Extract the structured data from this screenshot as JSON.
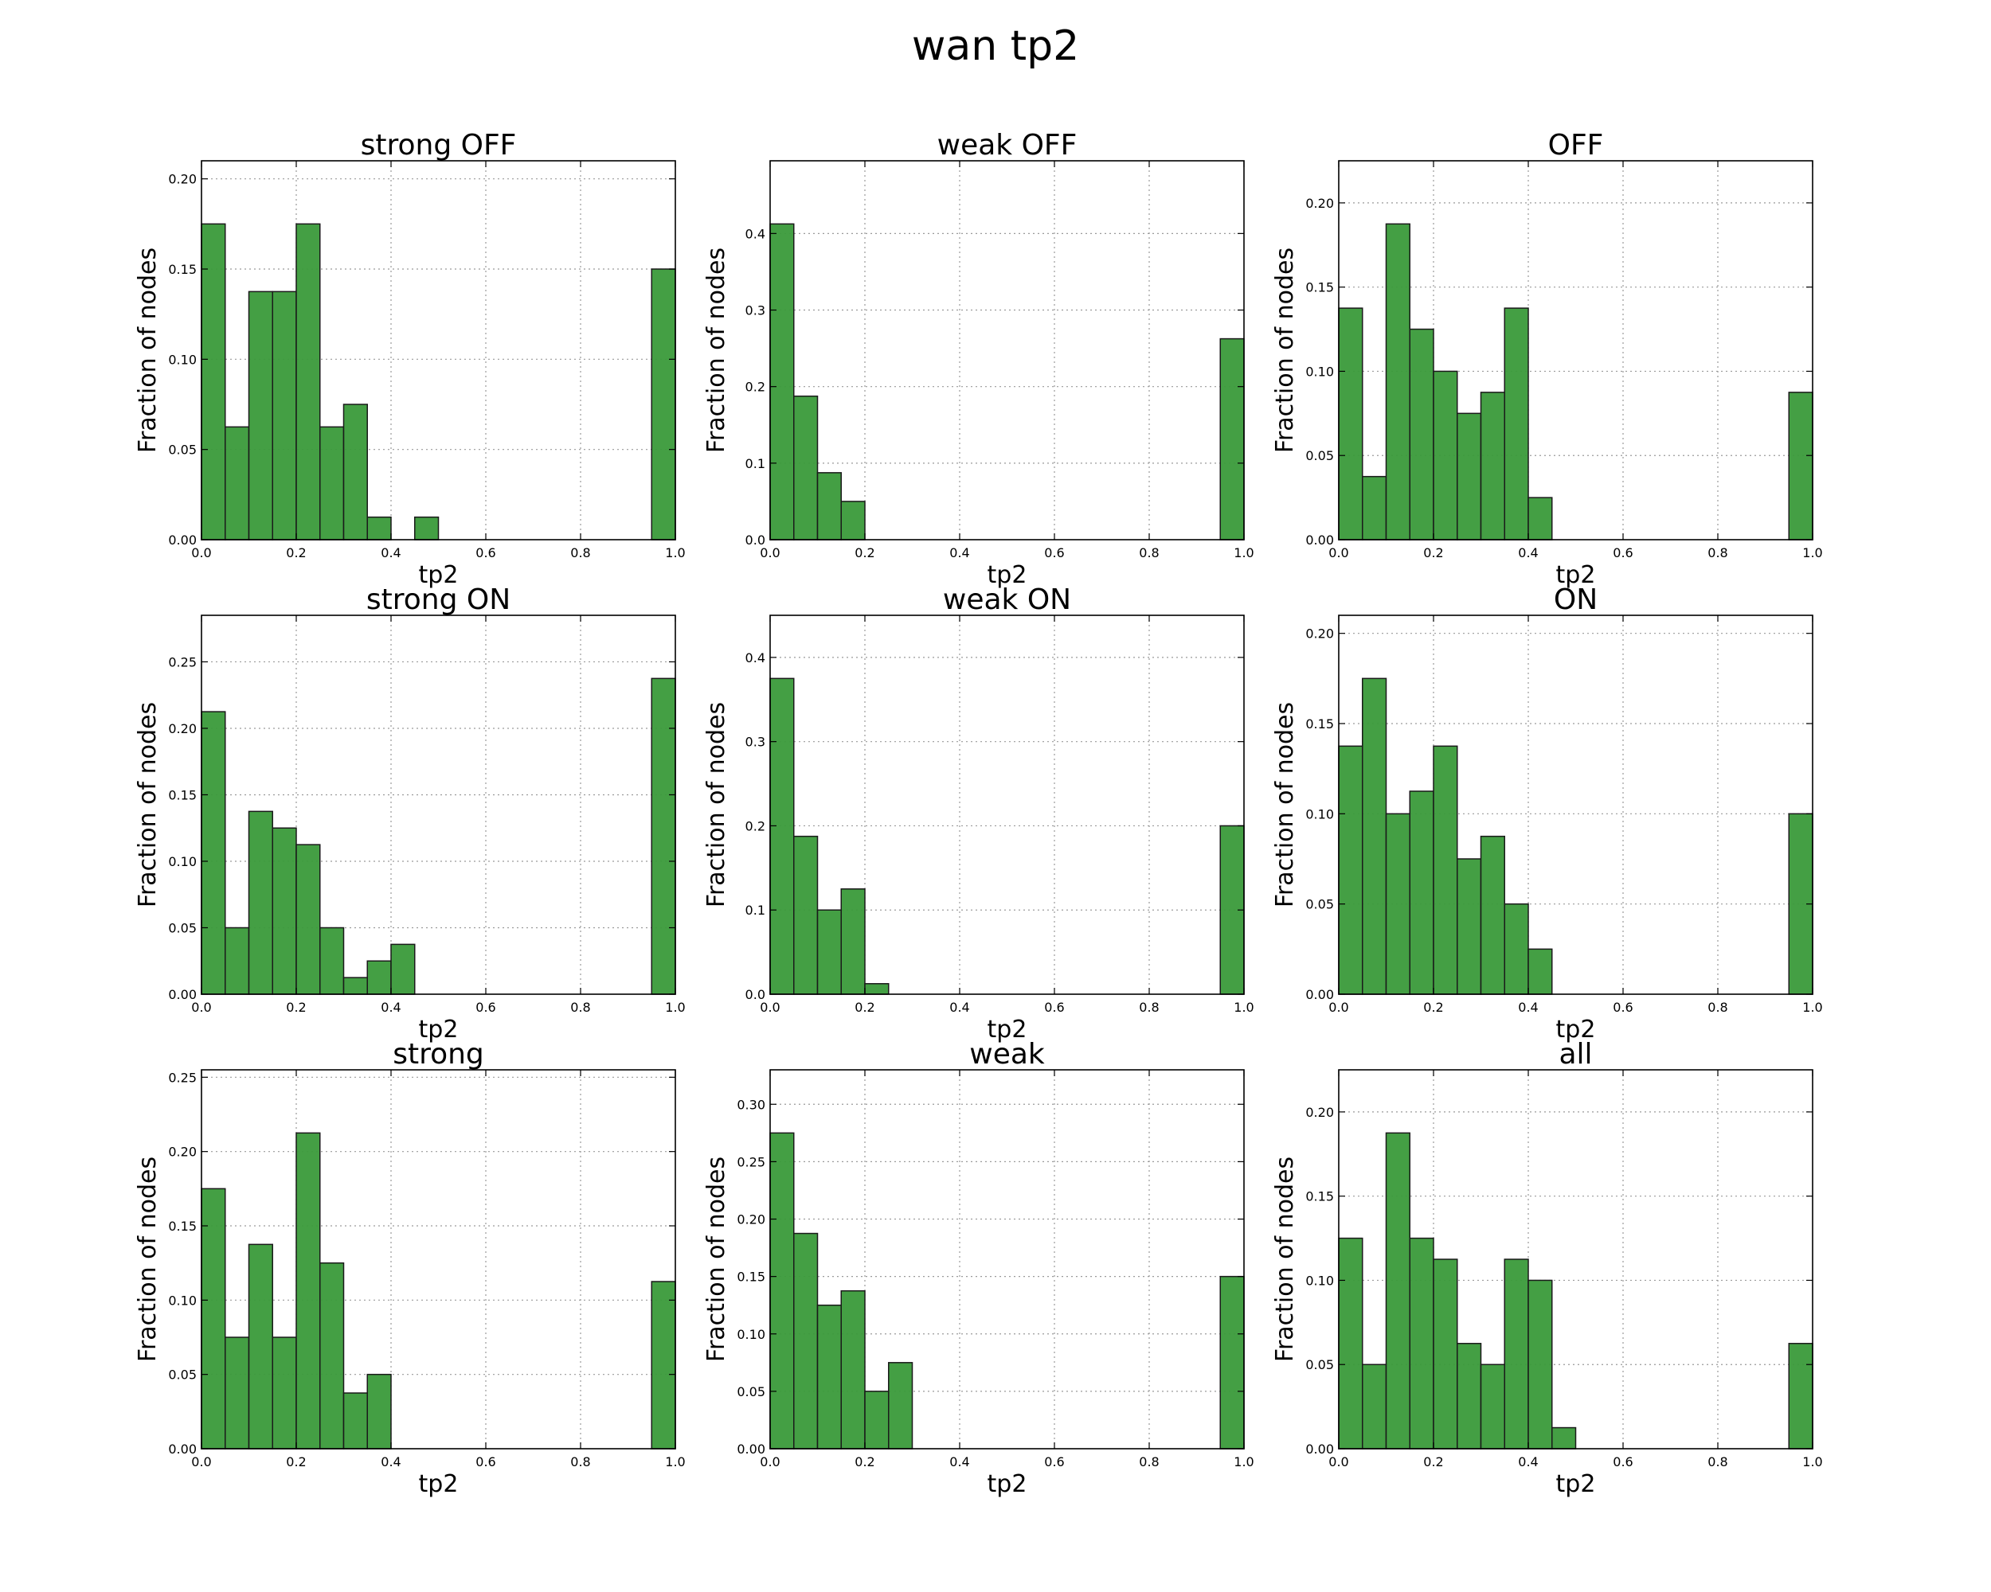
{
  "figure": {
    "title": "wan tp2"
  },
  "chart_data": [
    {
      "type": "bar",
      "title": "strong OFF",
      "xlabel": "tp2",
      "ylabel": "Fraction of nodes",
      "bin_edges": [
        0.0,
        0.05,
        0.1,
        0.15,
        0.2,
        0.25,
        0.3,
        0.35,
        0.4,
        0.45,
        0.5,
        0.55,
        0.6,
        0.65,
        0.7,
        0.75,
        0.8,
        0.85,
        0.9,
        0.95,
        1.0
      ],
      "values": [
        0.175,
        0.0625,
        0.1375,
        0.1375,
        0.175,
        0.0625,
        0.075,
        0.0125,
        0,
        0.0125,
        0,
        0,
        0,
        0,
        0,
        0,
        0,
        0,
        0,
        0.15
      ],
      "xlim": [
        0,
        1
      ],
      "ylim": [
        0,
        0.21
      ],
      "xticks": [
        "0.0",
        "0.2",
        "0.4",
        "0.6",
        "0.8",
        "1.0"
      ],
      "yticks": [
        "0.00",
        "0.05",
        "0.10",
        "0.15",
        "0.20"
      ],
      "grid": true,
      "color": "#3a9a3a"
    },
    {
      "type": "bar",
      "title": "weak OFF",
      "xlabel": "tp2",
      "ylabel": "Fraction of nodes",
      "bin_edges": [
        0.0,
        0.05,
        0.1,
        0.15,
        0.2,
        0.25,
        0.3,
        0.35,
        0.4,
        0.45,
        0.5,
        0.55,
        0.6,
        0.65,
        0.7,
        0.75,
        0.8,
        0.85,
        0.9,
        0.95,
        1.0
      ],
      "values": [
        0.4125,
        0.1875,
        0.0875,
        0.05,
        0,
        0,
        0,
        0,
        0,
        0,
        0,
        0,
        0,
        0,
        0,
        0,
        0,
        0,
        0,
        0.2625
      ],
      "xlim": [
        0,
        1
      ],
      "ylim": [
        0,
        0.495
      ],
      "xticks": [
        "0.0",
        "0.2",
        "0.4",
        "0.6",
        "0.8",
        "1.0"
      ],
      "yticks": [
        "0.0",
        "0.1",
        "0.2",
        "0.3",
        "0.4"
      ],
      "grid": true,
      "color": "#3a9a3a"
    },
    {
      "type": "bar",
      "title": "OFF",
      "xlabel": "tp2",
      "ylabel": "Fraction of nodes",
      "bin_edges": [
        0.0,
        0.05,
        0.1,
        0.15,
        0.2,
        0.25,
        0.3,
        0.35,
        0.4,
        0.45,
        0.5,
        0.55,
        0.6,
        0.65,
        0.7,
        0.75,
        0.8,
        0.85,
        0.9,
        0.95,
        1.0
      ],
      "values": [
        0.1375,
        0.0375,
        0.1875,
        0.125,
        0.1,
        0.075,
        0.0875,
        0.1375,
        0.025,
        0,
        0,
        0,
        0,
        0,
        0,
        0,
        0,
        0,
        0,
        0.0875
      ],
      "xlim": [
        0,
        1
      ],
      "ylim": [
        0,
        0.225
      ],
      "xticks": [
        "0.0",
        "0.2",
        "0.4",
        "0.6",
        "0.8",
        "1.0"
      ],
      "yticks": [
        "0.00",
        "0.05",
        "0.10",
        "0.15",
        "0.20"
      ],
      "grid": true,
      "color": "#3a9a3a"
    },
    {
      "type": "bar",
      "title": "strong ON",
      "xlabel": "tp2",
      "ylabel": "Fraction of nodes",
      "bin_edges": [
        0.0,
        0.05,
        0.1,
        0.15,
        0.2,
        0.25,
        0.3,
        0.35,
        0.4,
        0.45,
        0.5,
        0.55,
        0.6,
        0.65,
        0.7,
        0.75,
        0.8,
        0.85,
        0.9,
        0.95,
        1.0
      ],
      "values": [
        0.2125,
        0.05,
        0.1375,
        0.125,
        0.1125,
        0.05,
        0.0125,
        0.025,
        0.0375,
        0,
        0,
        0,
        0,
        0,
        0,
        0,
        0,
        0,
        0,
        0.2375
      ],
      "xlim": [
        0,
        1
      ],
      "ylim": [
        0,
        0.285
      ],
      "xticks": [
        "0.0",
        "0.2",
        "0.4",
        "0.6",
        "0.8",
        "1.0"
      ],
      "yticks": [
        "0.00",
        "0.05",
        "0.10",
        "0.15",
        "0.20",
        "0.25"
      ],
      "grid": true,
      "color": "#3a9a3a"
    },
    {
      "type": "bar",
      "title": "weak ON",
      "xlabel": "tp2",
      "ylabel": "Fraction of nodes",
      "bin_edges": [
        0.0,
        0.05,
        0.1,
        0.15,
        0.2,
        0.25,
        0.3,
        0.35,
        0.4,
        0.45,
        0.5,
        0.55,
        0.6,
        0.65,
        0.7,
        0.75,
        0.8,
        0.85,
        0.9,
        0.95,
        1.0
      ],
      "values": [
        0.375,
        0.1875,
        0.1,
        0.125,
        0.0125,
        0,
        0,
        0,
        0,
        0,
        0,
        0,
        0,
        0,
        0,
        0,
        0,
        0,
        0,
        0.2
      ],
      "xlim": [
        0,
        1
      ],
      "ylim": [
        0,
        0.45
      ],
      "xticks": [
        "0.0",
        "0.2",
        "0.4",
        "0.6",
        "0.8",
        "1.0"
      ],
      "yticks": [
        "0.0",
        "0.1",
        "0.2",
        "0.3",
        "0.4"
      ],
      "grid": true,
      "color": "#3a9a3a"
    },
    {
      "type": "bar",
      "title": "ON",
      "xlabel": "tp2",
      "ylabel": "Fraction of nodes",
      "bin_edges": [
        0.0,
        0.05,
        0.1,
        0.15,
        0.2,
        0.25,
        0.3,
        0.35,
        0.4,
        0.45,
        0.5,
        0.55,
        0.6,
        0.65,
        0.7,
        0.75,
        0.8,
        0.85,
        0.9,
        0.95,
        1.0
      ],
      "values": [
        0.1375,
        0.175,
        0.1,
        0.1125,
        0.1375,
        0.075,
        0.0875,
        0.05,
        0.025,
        0,
        0,
        0,
        0,
        0,
        0,
        0,
        0,
        0,
        0,
        0.1
      ],
      "xlim": [
        0,
        1
      ],
      "ylim": [
        0,
        0.21
      ],
      "xticks": [
        "0.0",
        "0.2",
        "0.4",
        "0.6",
        "0.8",
        "1.0"
      ],
      "yticks": [
        "0.00",
        "0.05",
        "0.10",
        "0.15",
        "0.20"
      ],
      "grid": true,
      "color": "#3a9a3a"
    },
    {
      "type": "bar",
      "title": "strong",
      "xlabel": "tp2",
      "ylabel": "Fraction of nodes",
      "bin_edges": [
        0.0,
        0.05,
        0.1,
        0.15,
        0.2,
        0.25,
        0.3,
        0.35,
        0.4,
        0.45,
        0.5,
        0.55,
        0.6,
        0.65,
        0.7,
        0.75,
        0.8,
        0.85,
        0.9,
        0.95,
        1.0
      ],
      "values": [
        0.175,
        0.075,
        0.1375,
        0.075,
        0.2125,
        0.125,
        0.0375,
        0.05,
        0,
        0,
        0,
        0,
        0,
        0,
        0,
        0,
        0,
        0,
        0,
        0.1125
      ],
      "xlim": [
        0,
        1
      ],
      "ylim": [
        0,
        0.255
      ],
      "xticks": [
        "0.0",
        "0.2",
        "0.4",
        "0.6",
        "0.8",
        "1.0"
      ],
      "yticks": [
        "0.00",
        "0.05",
        "0.10",
        "0.15",
        "0.20",
        "0.25"
      ],
      "grid": true,
      "color": "#3a9a3a"
    },
    {
      "type": "bar",
      "title": "weak",
      "xlabel": "tp2",
      "ylabel": "Fraction of nodes",
      "bin_edges": [
        0.0,
        0.05,
        0.1,
        0.15,
        0.2,
        0.25,
        0.3,
        0.35,
        0.4,
        0.45,
        0.5,
        0.55,
        0.6,
        0.65,
        0.7,
        0.75,
        0.8,
        0.85,
        0.9,
        0.95,
        1.0
      ],
      "values": [
        0.275,
        0.1875,
        0.125,
        0.1375,
        0.05,
        0.075,
        0,
        0,
        0,
        0,
        0,
        0,
        0,
        0,
        0,
        0,
        0,
        0,
        0,
        0.15
      ],
      "xlim": [
        0,
        1
      ],
      "ylim": [
        0,
        0.33
      ],
      "xticks": [
        "0.0",
        "0.2",
        "0.4",
        "0.6",
        "0.8",
        "1.0"
      ],
      "yticks": [
        "0.00",
        "0.05",
        "0.10",
        "0.15",
        "0.20",
        "0.25",
        "0.30"
      ],
      "grid": true,
      "color": "#3a9a3a"
    },
    {
      "type": "bar",
      "title": "all",
      "xlabel": "tp2",
      "ylabel": "Fraction of nodes",
      "bin_edges": [
        0.0,
        0.05,
        0.1,
        0.15,
        0.2,
        0.25,
        0.3,
        0.35,
        0.4,
        0.45,
        0.5,
        0.55,
        0.6,
        0.65,
        0.7,
        0.75,
        0.8,
        0.85,
        0.9,
        0.95,
        1.0
      ],
      "values": [
        0.125,
        0.05,
        0.1875,
        0.125,
        0.1125,
        0.0625,
        0.05,
        0.1125,
        0.1,
        0.0125,
        0,
        0,
        0,
        0,
        0,
        0,
        0,
        0,
        0,
        0.0625
      ],
      "xlim": [
        0,
        1
      ],
      "ylim": [
        0,
        0.225
      ],
      "xticks": [
        "0.0",
        "0.2",
        "0.4",
        "0.6",
        "0.8",
        "1.0"
      ],
      "yticks": [
        "0.00",
        "0.05",
        "0.10",
        "0.15",
        "0.20"
      ],
      "grid": true,
      "color": "#3a9a3a"
    }
  ]
}
